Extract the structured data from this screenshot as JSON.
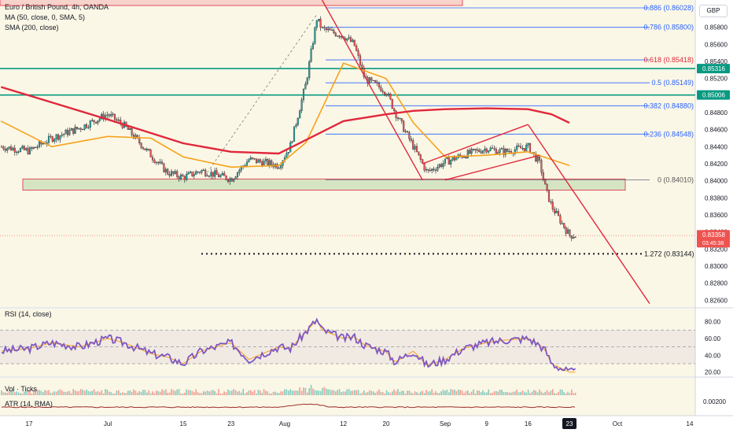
{
  "legend": {
    "title": "Euro / British Pound, 4h, OANDA",
    "ma": "MA (50, close, 0, SMA, 5)",
    "sma": "SMA (200, close)"
  },
  "currency_button": "GBP",
  "rsi_label": "RSI (14, close)",
  "vol_label": "Vol · Ticks",
  "atr_label": "ATR (14, RMA)",
  "colors": {
    "bull": "#26a69a",
    "bear": "#ef5350",
    "ma50": "#f7a21b",
    "sma200": "#e0283c",
    "fib": "#2962ff",
    "fib_text": "#e0283c",
    "green_level": "#089981",
    "zone_fill": "#b7d7a8",
    "zone_stroke": "#e0283c",
    "rsi": "#7e57c2",
    "trend": "#e0283c"
  },
  "chart_data": [
    {
      "type": "line",
      "title": "Euro / British Pound, 4h, OANDA",
      "currency": "GBP",
      "price_ticks": [
        "0.86000",
        "0.85800",
        "0.85600",
        "0.85400",
        "0.85200",
        "0.85000",
        "0.84800",
        "0.84600",
        "0.84400",
        "0.84200",
        "0.84000",
        "0.83800",
        "0.83600",
        "0.83400",
        "0.83200",
        "0.83000",
        "0.82800",
        "0.82600"
      ],
      "ylim": [
        0.8252,
        0.8612
      ],
      "x_ticks": [
        "17",
        "Jul",
        "15",
        "23",
        "Aug",
        "12",
        "20",
        "Sep",
        "9",
        "16",
        "23",
        "Oct",
        "14"
      ],
      "last_price": "0.83358",
      "countdown": "03:45:38",
      "highlighted_levels": [
        {
          "label": "0.85316",
          "value": 0.85316
        },
        {
          "label": "0.85006",
          "value": 0.85006
        }
      ],
      "fib_levels": [
        {
          "label": "0.886 (0.86028)",
          "value": 0.86028
        },
        {
          "label": "0.786 (0.85800)",
          "value": 0.858
        },
        {
          "label": "0.618 (0.85418)",
          "value": 0.85418
        },
        {
          "label": "0.5 (0.85149)",
          "value": 0.85149
        },
        {
          "label": "0.382 (0.84880)",
          "value": 0.8488
        },
        {
          "label": "0.236 (0.84548)",
          "value": 0.84548
        },
        {
          "label": "0 (0.84010)",
          "value": 0.8401
        }
      ],
      "extension_target": {
        "label": "1.272 (0.83144)",
        "value": 0.83144
      },
      "support_zone": [
        0.839,
        0.8397
      ],
      "series": [
        {
          "name": "Price (close, 4h)",
          "x": [
            "Jun 12",
            "Jun 17",
            "Jun 21",
            "Jun 26",
            "Jul 1",
            "Jul 4",
            "Jul 9",
            "Jul 12",
            "Jul 15",
            "Jul 18",
            "Jul 23",
            "Jul 26",
            "Jul 31",
            "Aug 2",
            "Aug 5",
            "Aug 7",
            "Aug 8",
            "Aug 12",
            "Aug 14",
            "Aug 16",
            "Aug 20",
            "Aug 22",
            "Aug 26",
            "Aug 29",
            "Sep 2",
            "Sep 5",
            "Sep 9",
            "Sep 12",
            "Sep 16",
            "Sep 18",
            "Sep 19",
            "Sep 20",
            "Sep 23"
          ],
          "values": [
            0.844,
            0.8435,
            0.845,
            0.8462,
            0.8478,
            0.8465,
            0.843,
            0.841,
            0.8404,
            0.8412,
            0.8402,
            0.8425,
            0.8418,
            0.844,
            0.8515,
            0.859,
            0.8578,
            0.857,
            0.856,
            0.852,
            0.8505,
            0.848,
            0.844,
            0.841,
            0.8422,
            0.843,
            0.8438,
            0.8434,
            0.844,
            0.842,
            0.839,
            0.837,
            0.8336
          ]
        },
        {
          "name": "MA (50)",
          "x": [
            "Jun 12",
            "Jun 21",
            "Jul 1",
            "Jul 9",
            "Jul 15",
            "Jul 23",
            "Jul 31",
            "Aug 5",
            "Aug 12",
            "Aug 20",
            "Aug 26",
            "Sep 2",
            "Sep 9",
            "Sep 16",
            "Sep 23"
          ],
          "values": [
            0.847,
            0.844,
            0.8452,
            0.845,
            0.8428,
            0.8416,
            0.8418,
            0.8445,
            0.8538,
            0.852,
            0.8468,
            0.8428,
            0.843,
            0.8434,
            0.8418
          ]
        },
        {
          "name": "SMA (200)",
          "x": [
            "Jun 12",
            "Jun 21",
            "Jul 1",
            "Jul 9",
            "Jul 15",
            "Jul 23",
            "Jul 31",
            "Aug 5",
            "Aug 12",
            "Aug 20",
            "Aug 26",
            "Sep 2",
            "Sep 9",
            "Sep 16",
            "Sep 20",
            "Sep 23"
          ],
          "values": [
            0.851,
            0.8492,
            0.8472,
            0.8456,
            0.8444,
            0.8434,
            0.8432,
            0.8448,
            0.847,
            0.8478,
            0.8482,
            0.8484,
            0.8485,
            0.8484,
            0.8478,
            0.8468
          ]
        }
      ]
    },
    {
      "type": "line",
      "title": "RSI (14, close)",
      "ticks": [
        "80.00",
        "60.00",
        "40.00",
        "20.00"
      ],
      "ylim": [
        15,
        88
      ],
      "band": [
        30,
        70
      ],
      "midline": 50,
      "series": [
        {
          "name": "RSI",
          "x": [
            "Jun 12",
            "Jun 17",
            "Jun 21",
            "Jun 26",
            "Jul 1",
            "Jul 4",
            "Jul 9",
            "Jul 12",
            "Jul 15",
            "Jul 18",
            "Jul 23",
            "Jul 26",
            "Jul 31",
            "Aug 2",
            "Aug 5",
            "Aug 7",
            "Aug 8",
            "Aug 12",
            "Aug 14",
            "Aug 16",
            "Aug 20",
            "Aug 22",
            "Aug 26",
            "Aug 29",
            "Sep 2",
            "Sep 5",
            "Sep 9",
            "Sep 12",
            "Sep 16",
            "Sep 18",
            "Sep 19",
            "Sep 20",
            "Sep 23"
          ],
          "values": [
            45,
            48,
            55,
            50,
            60,
            55,
            42,
            38,
            30,
            45,
            55,
            35,
            50,
            48,
            68,
            82,
            70,
            60,
            62,
            52,
            44,
            32,
            45,
            28,
            35,
            48,
            55,
            58,
            60,
            52,
            45,
            30,
            20
          ]
        }
      ]
    },
    {
      "type": "bar",
      "title": "Vol · Ticks",
      "series": [
        {
          "name": "Volume"
        }
      ]
    },
    {
      "type": "line",
      "title": "ATR (14, RMA)",
      "ticks": [
        "0.00200"
      ],
      "series": [
        {
          "name": "ATR"
        }
      ]
    }
  ]
}
